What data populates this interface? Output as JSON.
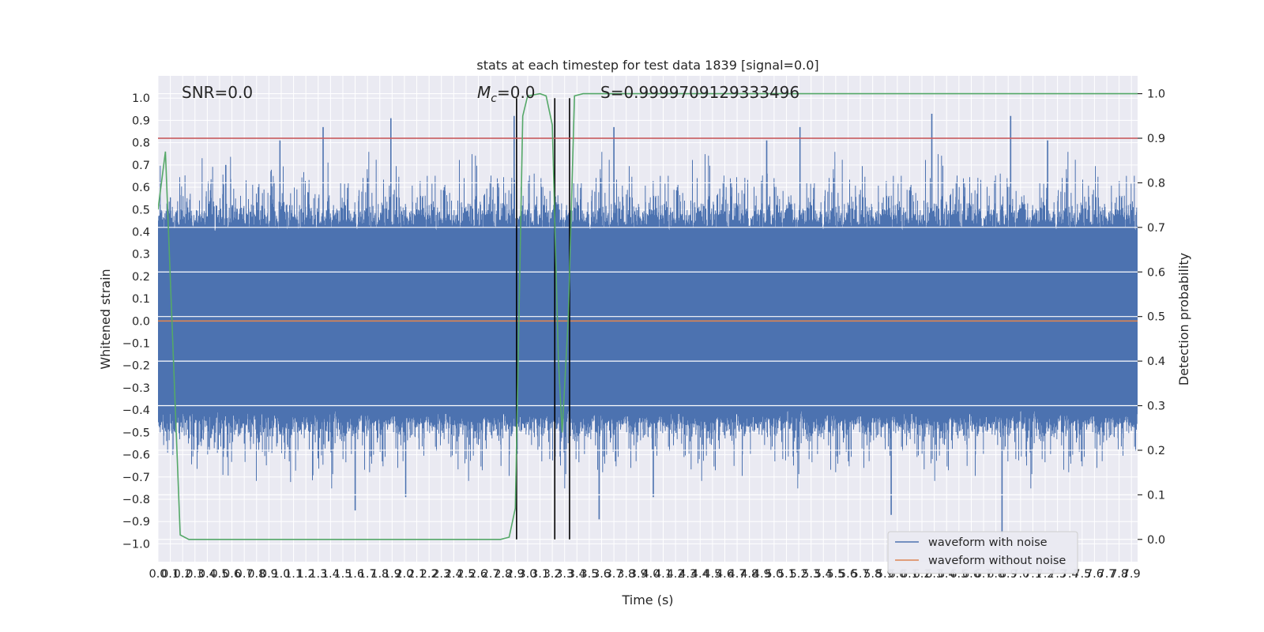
{
  "chart_data": {
    "type": "line",
    "title": "stats at each timestep for test data 1839 [signal=0.0]",
    "xlabel": "Time (s)",
    "ylabel": "Whitened strain",
    "y2label": "Detection probability",
    "xlim": [
      0.0,
      7.95
    ],
    "ylim": [
      -1.08,
      1.1
    ],
    "y2lim": [
      -0.05,
      1.04
    ],
    "grid": true,
    "x_ticks": [
      0.0,
      0.1,
      0.2,
      0.3,
      0.4,
      0.5,
      0.6,
      0.7,
      0.8,
      0.9,
      1.0,
      1.1,
      1.2,
      1.3,
      1.4,
      1.5,
      1.6,
      1.7,
      1.8,
      1.9,
      2.0,
      2.1,
      2.2,
      2.3,
      2.4,
      2.5,
      2.6,
      2.7,
      2.8,
      2.9,
      3.0,
      3.1,
      3.2,
      3.3,
      3.4,
      3.5,
      3.6,
      3.7,
      3.8,
      3.9,
      4.0,
      4.1,
      4.2,
      4.3,
      4.4,
      4.5,
      4.6,
      4.7,
      4.8,
      4.9,
      5.0,
      5.1,
      5.2,
      5.3,
      5.4,
      5.5,
      5.6,
      5.7,
      5.8,
      5.9,
      6.0,
      6.1,
      6.2,
      6.3,
      6.4,
      6.5,
      6.6,
      6.7,
      6.8,
      6.9,
      7.0,
      7.1,
      7.2,
      7.3,
      7.4,
      7.5,
      7.6,
      7.7,
      7.8,
      7.9
    ],
    "y_ticks": [
      -1.0,
      -0.9,
      -0.8,
      -0.7,
      -0.6,
      -0.5,
      -0.4,
      -0.3,
      -0.2,
      -0.1,
      0.0,
      0.1,
      0.2,
      0.3,
      0.4,
      0.5,
      0.6,
      0.7,
      0.8,
      0.9,
      1.0
    ],
    "y2_ticks": [
      0.0,
      0.1,
      0.2,
      0.3,
      0.4,
      0.5,
      0.6,
      0.7,
      0.8,
      0.9,
      1.0
    ],
    "annotations": {
      "snr": "SNR=0.0",
      "mc_symbol": "M",
      "mc_sub": "c",
      "mc_value": "=0.0",
      "s": "S=0.9999709129333496"
    },
    "vertical_lines_x": [
      2.91,
      3.22,
      3.34
    ],
    "threshold_y2": 0.9,
    "noisy_waveform": {
      "sample_rate_hz": 2048,
      "core_amplitude": 0.4,
      "spike_peaks": [
        {
          "x": 0.55,
          "y": 0.7
        },
        {
          "x": 1.34,
          "y": 0.87
        },
        {
          "x": 1.89,
          "y": 0.91
        },
        {
          "x": 0.99,
          "y": 0.81
        },
        {
          "x": 5.21,
          "y": 0.87
        },
        {
          "x": 6.28,
          "y": 0.93
        },
        {
          "x": 6.92,
          "y": 0.92
        },
        {
          "x": 7.22,
          "y": 0.81
        },
        {
          "x": 3.7,
          "y": 0.87
        },
        {
          "x": 4.94,
          "y": 0.81
        },
        {
          "x": 1.6,
          "y": -0.85
        },
        {
          "x": 2.01,
          "y": -0.79
        },
        {
          "x": 5.95,
          "y": -0.87
        },
        {
          "x": 6.85,
          "y": -0.97
        },
        {
          "x": 3.58,
          "y": -0.89
        },
        {
          "x": 4.02,
          "y": -0.79
        },
        {
          "x": 2.89,
          "y": 0.92
        }
      ]
    },
    "series": [
      {
        "name": "waveform with noise",
        "color": "#4c72b0",
        "axis": "left"
      },
      {
        "name": "waveform without noise",
        "color": "#dd8452",
        "axis": "left",
        "x": [
          0.0,
          7.95
        ],
        "y": [
          0.0,
          0.0
        ]
      },
      {
        "color": "#55a868",
        "axis": "right",
        "x": [
          0.0,
          0.06,
          0.18,
          0.25,
          1.0,
          2.0,
          2.78,
          2.85,
          2.9,
          2.96,
          3.0,
          3.1,
          3.15,
          3.2,
          3.25,
          3.28,
          3.33,
          3.38,
          3.45,
          3.6,
          7.95
        ],
        "y": [
          0.74,
          0.87,
          0.01,
          0.0,
          0.0,
          0.0,
          0.0,
          0.005,
          0.07,
          0.95,
          0.995,
          1.0,
          0.995,
          0.93,
          0.4,
          0.24,
          0.5,
          0.995,
          1.0,
          1.0,
          1.0
        ]
      },
      {
        "color": "#c44e52",
        "axis": "right",
        "x": [
          0.0,
          7.95
        ],
        "y": [
          0.9,
          0.9
        ]
      }
    ]
  }
}
